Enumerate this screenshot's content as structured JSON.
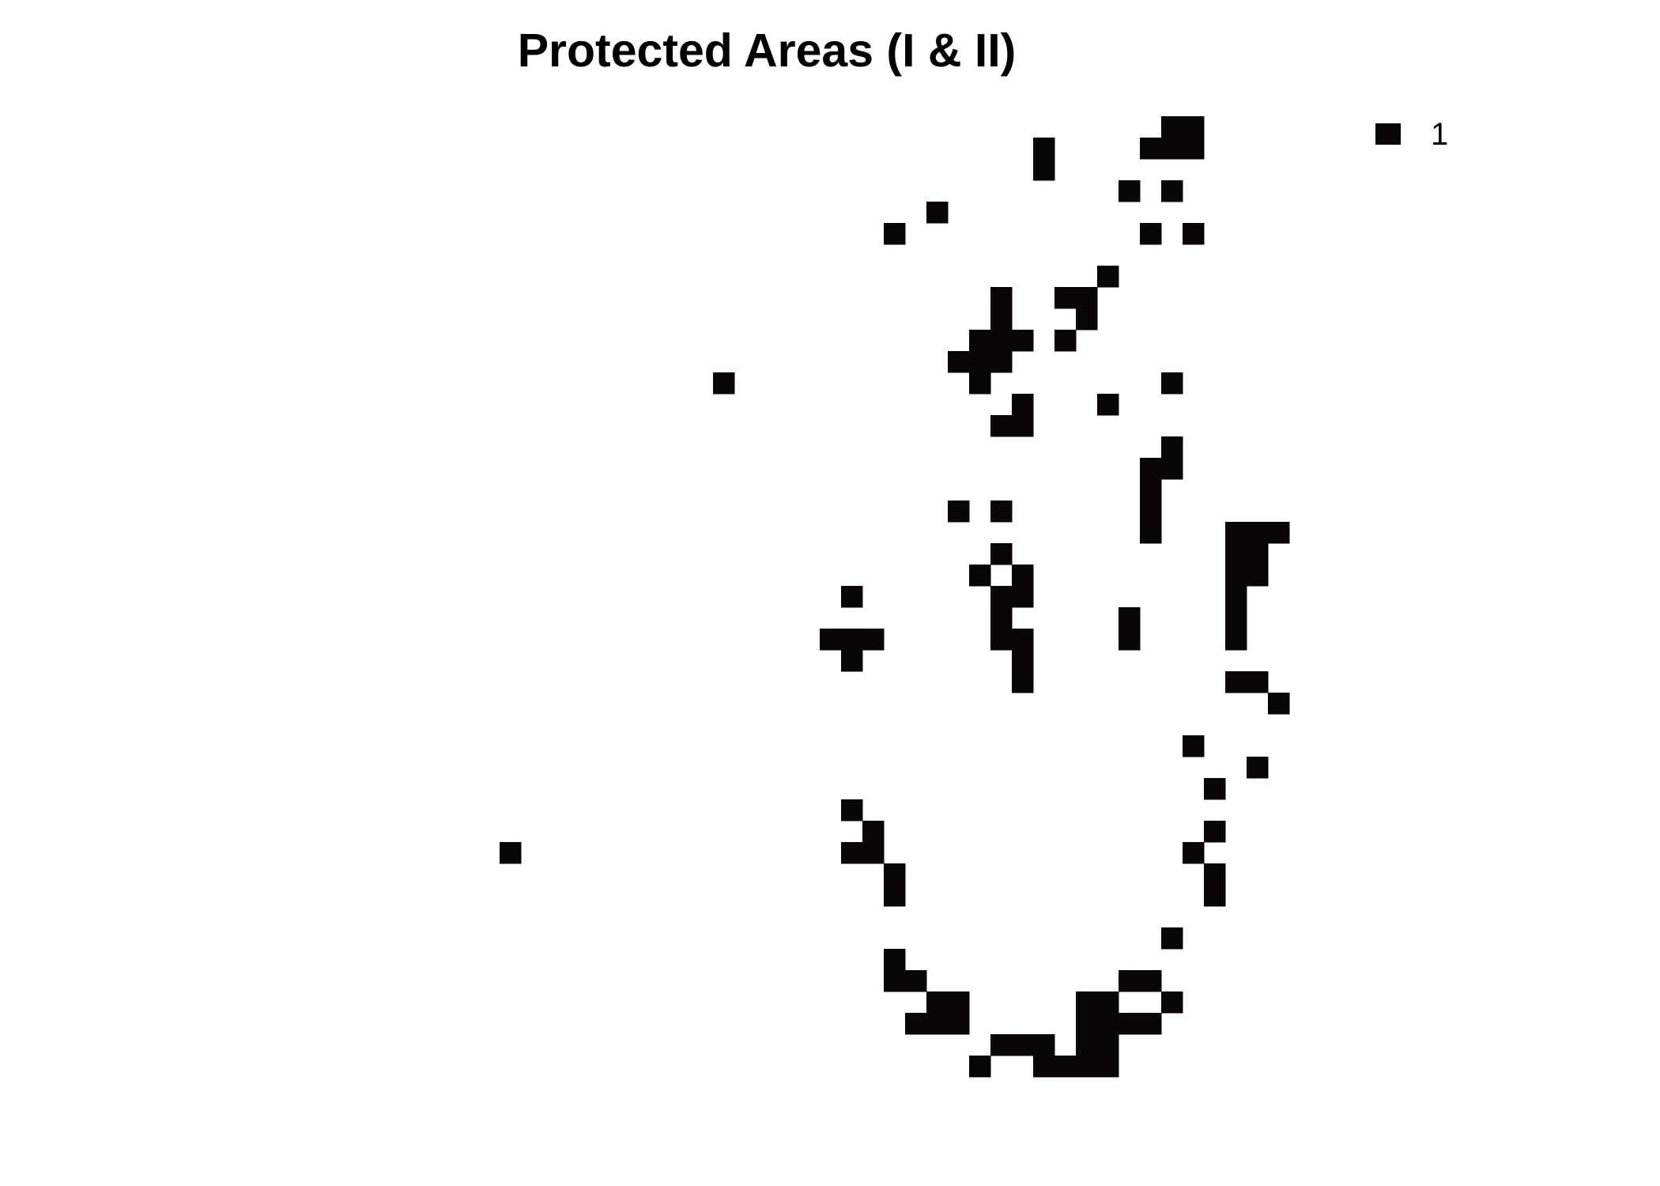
{
  "title": "Protected Areas (I & II)",
  "legend": {
    "label": "1",
    "color": "#0a0606"
  },
  "raster": {
    "fill_value": 1,
    "fill_color": "#0a0606",
    "background_color": "#ffffff",
    "grid_cols": 55,
    "grid_rows": 47,
    "cells": [
      [
        41,
        1
      ],
      [
        42,
        1
      ],
      [
        35,
        2
      ],
      [
        40,
        2
      ],
      [
        41,
        2
      ],
      [
        42,
        2
      ],
      [
        35,
        3
      ],
      [
        39,
        4
      ],
      [
        41,
        4
      ],
      [
        30,
        5
      ],
      [
        28,
        6
      ],
      [
        40,
        6
      ],
      [
        42,
        6
      ],
      [
        38,
        8
      ],
      [
        33,
        9
      ],
      [
        36,
        9
      ],
      [
        37,
        9
      ],
      [
        33,
        10
      ],
      [
        37,
        10
      ],
      [
        32,
        11
      ],
      [
        33,
        11
      ],
      [
        34,
        11
      ],
      [
        36,
        11
      ],
      [
        31,
        12
      ],
      [
        32,
        12
      ],
      [
        33,
        12
      ],
      [
        20,
        13
      ],
      [
        32,
        13
      ],
      [
        41,
        13
      ],
      [
        34,
        14
      ],
      [
        38,
        14
      ],
      [
        33,
        15
      ],
      [
        34,
        15
      ],
      [
        41,
        16
      ],
      [
        40,
        17
      ],
      [
        41,
        17
      ],
      [
        40,
        18
      ],
      [
        31,
        19
      ],
      [
        33,
        19
      ],
      [
        40,
        19
      ],
      [
        40,
        20
      ],
      [
        44,
        20
      ],
      [
        45,
        20
      ],
      [
        46,
        20
      ],
      [
        33,
        21
      ],
      [
        44,
        21
      ],
      [
        45,
        21
      ],
      [
        32,
        22
      ],
      [
        34,
        22
      ],
      [
        44,
        22
      ],
      [
        45,
        22
      ],
      [
        26,
        23
      ],
      [
        33,
        23
      ],
      [
        34,
        23
      ],
      [
        44,
        23
      ],
      [
        33,
        24
      ],
      [
        39,
        24
      ],
      [
        44,
        24
      ],
      [
        25,
        25
      ],
      [
        26,
        25
      ],
      [
        27,
        25
      ],
      [
        33,
        25
      ],
      [
        34,
        25
      ],
      [
        39,
        25
      ],
      [
        44,
        25
      ],
      [
        26,
        26
      ],
      [
        34,
        26
      ],
      [
        34,
        27
      ],
      [
        44,
        27
      ],
      [
        45,
        27
      ],
      [
        46,
        28
      ],
      [
        42,
        30
      ],
      [
        45,
        31
      ],
      [
        43,
        32
      ],
      [
        26,
        33
      ],
      [
        27,
        34
      ],
      [
        43,
        34
      ],
      [
        10,
        35
      ],
      [
        26,
        35
      ],
      [
        27,
        35
      ],
      [
        42,
        35
      ],
      [
        28,
        36
      ],
      [
        43,
        36
      ],
      [
        28,
        37
      ],
      [
        43,
        37
      ],
      [
        41,
        39
      ],
      [
        28,
        40
      ],
      [
        28,
        41
      ],
      [
        29,
        41
      ],
      [
        39,
        41
      ],
      [
        40,
        41
      ],
      [
        30,
        42
      ],
      [
        31,
        42
      ],
      [
        37,
        42
      ],
      [
        38,
        42
      ],
      [
        41,
        42
      ],
      [
        29,
        43
      ],
      [
        30,
        43
      ],
      [
        31,
        43
      ],
      [
        37,
        43
      ],
      [
        38,
        43
      ],
      [
        39,
        43
      ],
      [
        40,
        43
      ],
      [
        33,
        44
      ],
      [
        34,
        44
      ],
      [
        35,
        44
      ],
      [
        37,
        44
      ],
      [
        38,
        44
      ],
      [
        32,
        45
      ],
      [
        35,
        45
      ],
      [
        36,
        45
      ],
      [
        37,
        45
      ],
      [
        38,
        45
      ]
    ]
  }
}
